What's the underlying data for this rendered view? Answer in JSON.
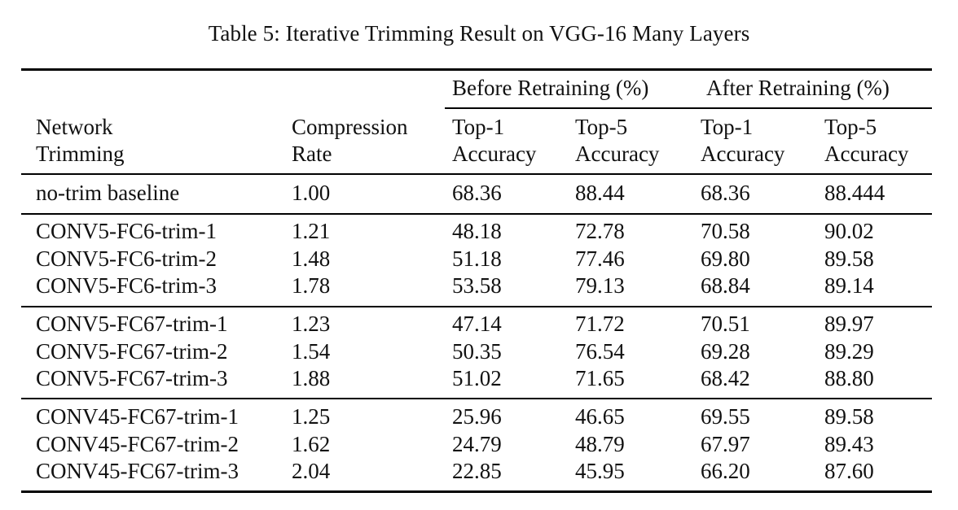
{
  "caption": "Table 5: Iterative Trimming Result on VGG-16 Many Layers",
  "header": {
    "group_before": "Before Retraining (%)",
    "group_after": "After Retraining (%)",
    "col_network_line1": "Network",
    "col_network_line2": "Trimming",
    "col_rate_line1": "Compression",
    "col_rate_line2": "Rate",
    "col_b_top1_line1": "Top-1",
    "col_b_top1_line2": "Accuracy",
    "col_b_top5_line1": "Top-5",
    "col_b_top5_line2": "Accuracy",
    "col_a_top1_line1": "Top-1",
    "col_a_top1_line2": "Accuracy",
    "col_a_top5_line1": "Top-5",
    "col_a_top5_line2": "Accuracy"
  },
  "rows": [
    [
      "no-trim baseline",
      "1.00",
      "68.36",
      "88.44",
      "68.36",
      "88.444"
    ],
    [
      "CONV5-FC6-trim-1",
      "1.21",
      "48.18",
      "72.78",
      "70.58",
      "90.02"
    ],
    [
      "CONV5-FC6-trim-2",
      "1.48",
      "51.18",
      "77.46",
      "69.80",
      "89.58"
    ],
    [
      "CONV5-FC6-trim-3",
      "1.78",
      "53.58",
      "79.13",
      "68.84",
      "89.14"
    ],
    [
      "CONV5-FC67-trim-1",
      "1.23",
      "47.14",
      "71.72",
      "70.51",
      "89.97"
    ],
    [
      "CONV5-FC67-trim-2",
      "1.54",
      "50.35",
      "76.54",
      "69.28",
      "89.29"
    ],
    [
      "CONV5-FC67-trim-3",
      "1.88",
      "51.02",
      "71.65",
      "68.42",
      "88.80"
    ],
    [
      "CONV45-FC67-trim-1",
      "1.25",
      "25.96",
      "46.65",
      "69.55",
      "89.58"
    ],
    [
      "CONV45-FC67-trim-2",
      "1.62",
      "24.79",
      "48.79",
      "67.97",
      "89.43"
    ],
    [
      "CONV45-FC67-trim-3",
      "2.04",
      "22.85",
      "45.95",
      "66.20",
      "87.60"
    ]
  ]
}
